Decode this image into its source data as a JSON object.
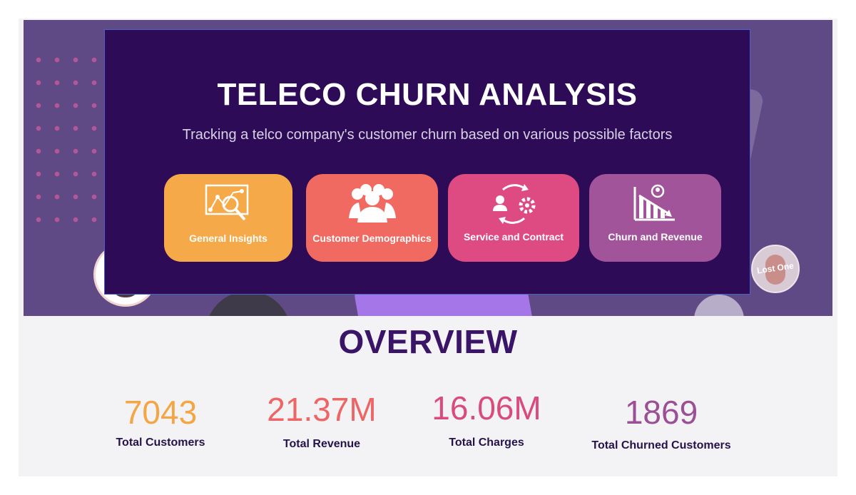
{
  "header": {
    "title": "TELECO CHURN ANALYSIS",
    "subtitle": "Tracking a telco company's customer churn based on various possible factors",
    "avatar_tag": "Lost One"
  },
  "nav": [
    {
      "label": "General Insights",
      "icon": "chart-magnifier-icon",
      "color": "#f5a948"
    },
    {
      "label": "Customer Demographics",
      "icon": "people-group-icon",
      "color": "#f06a62"
    },
    {
      "label": "Service and Contract",
      "icon": "person-cycle-gear-icon",
      "color": "#de4b83"
    },
    {
      "label": "Churn and Revenue",
      "icon": "declining-bar-chart-icon",
      "color": "#a1549a"
    }
  ],
  "overview": {
    "title": "OVERVIEW",
    "kpis": [
      {
        "value": "7043",
        "label": "Total Customers",
        "color": "#f4a544"
      },
      {
        "value": "21.37M",
        "label": "Total Revenue",
        "color": "#ee6565"
      },
      {
        "value": "16.06M",
        "label": "Total Charges",
        "color": "#d94b7b"
      },
      {
        "value": "1869",
        "label": "Total Churned Customers",
        "color": "#9b4f95"
      }
    ]
  },
  "colors": {
    "hero_bg": "#5f4a85",
    "panel_bg": "#2e0b56",
    "overview_title": "#3a1466"
  }
}
